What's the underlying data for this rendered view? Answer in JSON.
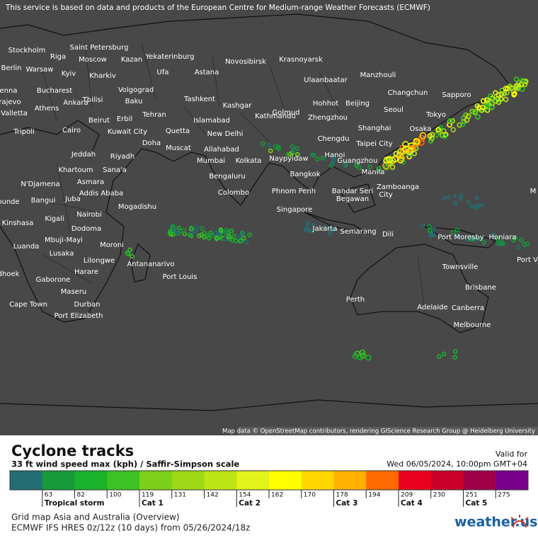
{
  "notice": "This service is based on data and products of the European Centre for Medium-range Weather Forecasts (ECMWF)",
  "map_credit": "Map data © OpenStreetMap contributors, rendering GIScience Research Group @ Heidelberg University",
  "cities": [
    "Stockholm",
    "Riga",
    "Saint Petersburg",
    "Moscow",
    "Kazan",
    "Yekaterinburg",
    "Novosibirsk",
    "Krasnoyarsk",
    "Berlin",
    "Warsaw",
    "Kyiv",
    "Kharkiv",
    "Ufa",
    "Astana",
    "Ulaanbaatar",
    "Manzhouli",
    "enna",
    "Bucharest",
    "Volgograd",
    "Changchun",
    "Sapporo",
    "rajevo",
    "Tbilisi",
    "Baku",
    "Tashkent",
    "Hohhot",
    "Beijing",
    "Seoul",
    "Valletta",
    "Athens",
    "Ankara",
    "Kashgar",
    "Tehran",
    "Golmud",
    "Zhengzhou",
    "Tokyo",
    "Islamabad",
    "Tripoli",
    "Cairo",
    "Beirut",
    "Erbil",
    "Kuwait City",
    "Quetta",
    "New Delhi",
    "Kathmandu",
    "Shanghai",
    "Osaka",
    "Chengdu",
    "Taipei City",
    "Doha",
    "Muscat",
    "Allahabad",
    "Jeddah",
    "Riyadh",
    "Mumbai",
    "Kolkata",
    "Naypyidaw",
    "Hanoi",
    "Guangzhou",
    "Khartoum",
    "Sana'a",
    "Bengaluru",
    "Manila",
    "Bangkok",
    "Asmara",
    "Addis Ababa",
    "N'Djamena",
    "Colombo",
    "Phnom Penh",
    "Bandar Seri",
    "Begawan",
    "Zamboanga",
    "City",
    "ounde",
    "Bangui",
    "Juba",
    "Mogadishu",
    "Singapore",
    "Nairobi",
    "Kigali",
    "Dodoma",
    "Kinshasa",
    "Jakarta",
    "Semarang",
    "Dili",
    "Port Moresby",
    "Honiara",
    "Mbuji-Mayi",
    "Luanda",
    "Moroni",
    "Lusaka",
    "Lilongwe",
    "Antananarivo",
    "Townsville",
    "Port V",
    "dhoek",
    "Harare",
    "Port Louis",
    "Gaborone",
    "Brisbane",
    "Maseru",
    "Cape Town",
    "Durban",
    "Perth",
    "Adelaide",
    "Canberra",
    "Port Elizabeth",
    "Melbourne",
    "M"
  ],
  "legend": {
    "title": "Cyclone tracks",
    "subtitle": "33 ft wind speed max (kph) / Saffir-Simpson scale",
    "valid_label": "Valid for",
    "valid_time": "Wed 06/05/2024, 10:00pm GMT+04",
    "colors": [
      "#236e73",
      "#169a3a",
      "#19b22a",
      "#3cc223",
      "#7cd01a",
      "#9ed817",
      "#bde414",
      "#e2f21a",
      "#ffff00",
      "#ffd700",
      "#ffb000",
      "#ff6a00",
      "#e8001e",
      "#c8002a",
      "#a0004a",
      "#76008a"
    ],
    "ticks": [
      63,
      82,
      100,
      119,
      131,
      142,
      154,
      162,
      170,
      178,
      194,
      209,
      230,
      251,
      275
    ],
    "categories": [
      "Tropical storm",
      "Cat 1",
      "Cat 2",
      "Cat 3",
      "Cat 4",
      "Cat 5"
    ]
  },
  "footer": {
    "map_name": "Grid map Asia and Australia (Overview)",
    "model_run": "ECMWF IFS HRES 0z/12z (10 days) from  05/26/2024/18z",
    "brand": "weather.us"
  }
}
